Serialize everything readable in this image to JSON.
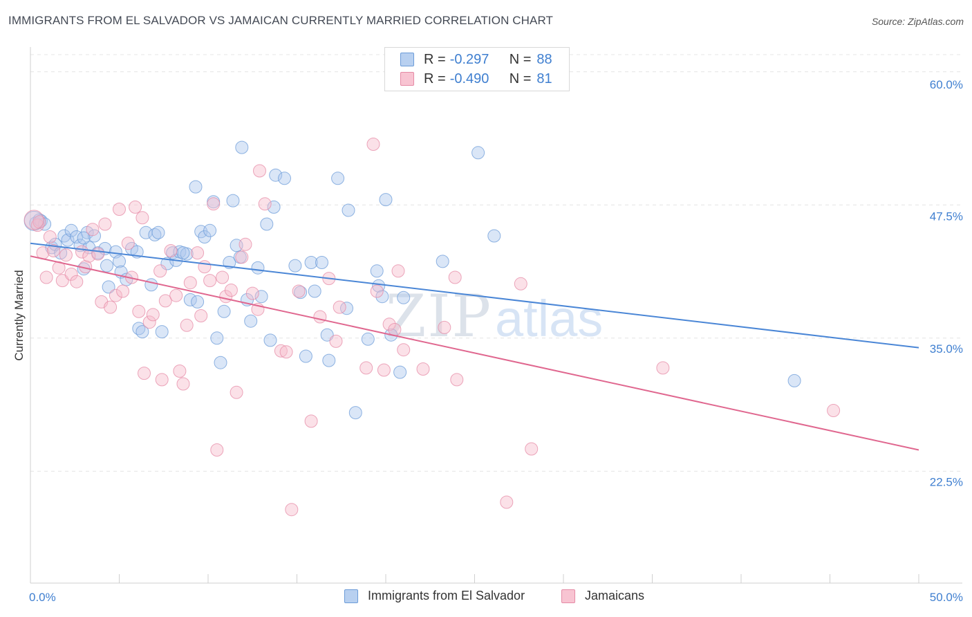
{
  "header": {
    "title": "IMMIGRANTS FROM EL SALVADOR VS JAMAICAN CURRENTLY MARRIED CORRELATION CHART",
    "source": "Source: ZipAtlas.com"
  },
  "watermark": {
    "zip": "ZIP",
    "atlas": "atlas"
  },
  "legend": {
    "r_label": "R = ",
    "n_label": "N = ",
    "rows": [
      {
        "r": "-0.297",
        "n": "88",
        "fill": "#b8d0f0",
        "stroke": "#6b9bd8"
      },
      {
        "r": "-0.490",
        "n": "81",
        "fill": "#f8c4d2",
        "stroke": "#e58aa5"
      }
    ]
  },
  "chart_data": {
    "type": "scatter",
    "title": "IMMIGRANTS FROM EL SALVADOR VS JAMAICAN CURRENTLY MARRIED CORRELATION CHART",
    "xlabel": "",
    "ylabel": "Currently Married",
    "xlim": [
      0,
      50
    ],
    "ylim": [
      12,
      62
    ],
    "x_tick_labels": [
      "0.0%",
      "50.0%"
    ],
    "y_ticks": [
      22.5,
      35.0,
      47.5,
      60.0
    ],
    "y_tick_labels": [
      "22.5%",
      "35.0%",
      "47.5%",
      "60.0%"
    ],
    "grid": true,
    "legend_position": "top-center",
    "series": [
      {
        "name": "Immigrants from El Salvador",
        "color": "#4a86d6",
        "fill": "#aec8ee",
        "trend": {
          "x": [
            0,
            50
          ],
          "y": [
            43.9,
            34.1
          ]
        },
        "points": [
          [
            0.3,
            45.8
          ],
          [
            0.5,
            46.1
          ],
          [
            0.6,
            46.0
          ],
          [
            0.8,
            45.7
          ],
          [
            1.2,
            43.5
          ],
          [
            1.4,
            43.8
          ],
          [
            1.7,
            43.0
          ],
          [
            1.9,
            44.6
          ],
          [
            2.1,
            44.2
          ],
          [
            2.3,
            45.1
          ],
          [
            2.6,
            44.5
          ],
          [
            2.8,
            43.7
          ],
          [
            3.0,
            41.5
          ],
          [
            3.2,
            44.9
          ],
          [
            3.3,
            43.5
          ],
          [
            3.6,
            44.6
          ],
          [
            3.8,
            43.0
          ],
          [
            4.2,
            43.4
          ],
          [
            4.3,
            41.8
          ],
          [
            4.4,
            39.8
          ],
          [
            4.8,
            43.1
          ],
          [
            5.0,
            42.2
          ],
          [
            5.1,
            41.2
          ],
          [
            5.4,
            40.5
          ],
          [
            5.7,
            43.4
          ],
          [
            6.0,
            43.1
          ],
          [
            6.1,
            35.9
          ],
          [
            6.3,
            35.6
          ],
          [
            6.5,
            44.9
          ],
          [
            6.8,
            40.0
          ],
          [
            7.0,
            44.7
          ],
          [
            7.2,
            44.9
          ],
          [
            7.4,
            35.6
          ],
          [
            7.7,
            42.0
          ],
          [
            8.0,
            43.0
          ],
          [
            8.2,
            42.3
          ],
          [
            8.4,
            43.1
          ],
          [
            8.8,
            42.9
          ],
          [
            9.0,
            38.6
          ],
          [
            9.3,
            49.2
          ],
          [
            9.4,
            38.4
          ],
          [
            9.6,
            45.0
          ],
          [
            9.8,
            44.5
          ],
          [
            10.1,
            45.1
          ],
          [
            10.3,
            47.8
          ],
          [
            10.5,
            35.0
          ],
          [
            10.7,
            32.7
          ],
          [
            10.9,
            37.5
          ],
          [
            11.2,
            42.1
          ],
          [
            11.4,
            47.9
          ],
          [
            11.6,
            43.7
          ],
          [
            11.8,
            42.6
          ],
          [
            11.9,
            52.9
          ],
          [
            12.2,
            38.6
          ],
          [
            12.4,
            36.6
          ],
          [
            12.8,
            41.6
          ],
          [
            13.0,
            38.9
          ],
          [
            13.3,
            45.7
          ],
          [
            13.5,
            34.8
          ],
          [
            13.7,
            47.3
          ],
          [
            13.8,
            50.3
          ],
          [
            14.3,
            50.0
          ],
          [
            14.9,
            41.8
          ],
          [
            15.2,
            39.3
          ],
          [
            15.5,
            33.3
          ],
          [
            15.8,
            42.1
          ],
          [
            16.4,
            42.1
          ],
          [
            16.7,
            35.3
          ],
          [
            16.8,
            32.9
          ],
          [
            17.3,
            50.0
          ],
          [
            17.8,
            37.8
          ],
          [
            17.9,
            47.0
          ],
          [
            18.3,
            28.0
          ],
          [
            19.0,
            34.9
          ],
          [
            19.5,
            41.3
          ],
          [
            19.6,
            39.9
          ],
          [
            19.8,
            38.9
          ],
          [
            20.3,
            35.3
          ],
          [
            20.0,
            48.0
          ],
          [
            20.8,
            31.8
          ],
          [
            21.0,
            38.8
          ],
          [
            23.2,
            42.2
          ],
          [
            25.2,
            52.4
          ],
          [
            26.1,
            44.6
          ],
          [
            43.0,
            31.0
          ],
          [
            3.0,
            44.4
          ],
          [
            8.6,
            43.0
          ],
          [
            16.0,
            39.4
          ]
        ]
      },
      {
        "name": "Jamaicans",
        "color": "#e0678f",
        "fill": "#f6bccb",
        "trend": {
          "x": [
            0,
            50
          ],
          "y": [
            42.7,
            24.5
          ]
        },
        "points": [
          [
            0.4,
            45.6
          ],
          [
            0.7,
            43.0
          ],
          [
            0.9,
            40.7
          ],
          [
            1.1,
            44.5
          ],
          [
            1.3,
            43.2
          ],
          [
            1.6,
            41.6
          ],
          [
            1.8,
            40.4
          ],
          [
            2.0,
            42.8
          ],
          [
            2.3,
            41.0
          ],
          [
            2.6,
            40.3
          ],
          [
            2.9,
            43.1
          ],
          [
            3.1,
            41.7
          ],
          [
            3.3,
            42.7
          ],
          [
            3.5,
            45.2
          ],
          [
            3.8,
            42.9
          ],
          [
            4.0,
            38.4
          ],
          [
            4.2,
            45.7
          ],
          [
            4.5,
            37.9
          ],
          [
            4.8,
            39.0
          ],
          [
            5.0,
            47.1
          ],
          [
            5.2,
            39.4
          ],
          [
            5.5,
            43.9
          ],
          [
            5.7,
            40.7
          ],
          [
            5.9,
            47.3
          ],
          [
            6.1,
            37.5
          ],
          [
            6.3,
            46.3
          ],
          [
            6.4,
            31.7
          ],
          [
            6.7,
            36.5
          ],
          [
            6.9,
            37.2
          ],
          [
            7.3,
            41.3
          ],
          [
            7.4,
            31.1
          ],
          [
            7.6,
            38.5
          ],
          [
            7.9,
            43.2
          ],
          [
            8.2,
            39.0
          ],
          [
            8.4,
            31.9
          ],
          [
            8.6,
            30.7
          ],
          [
            8.8,
            36.2
          ],
          [
            9.0,
            40.2
          ],
          [
            9.4,
            43.0
          ],
          [
            9.6,
            37.1
          ],
          [
            9.8,
            41.7
          ],
          [
            10.1,
            40.4
          ],
          [
            10.3,
            47.6
          ],
          [
            10.5,
            24.5
          ],
          [
            10.8,
            40.7
          ],
          [
            11.0,
            38.9
          ],
          [
            11.3,
            39.5
          ],
          [
            11.6,
            29.9
          ],
          [
            11.9,
            42.6
          ],
          [
            12.1,
            43.8
          ],
          [
            12.5,
            39.2
          ],
          [
            12.8,
            37.7
          ],
          [
            12.9,
            50.7
          ],
          [
            13.2,
            47.6
          ],
          [
            14.1,
            33.8
          ],
          [
            14.4,
            33.7
          ],
          [
            14.7,
            18.9
          ],
          [
            15.1,
            39.4
          ],
          [
            15.8,
            27.2
          ],
          [
            16.3,
            37.0
          ],
          [
            16.8,
            40.6
          ],
          [
            17.2,
            34.7
          ],
          [
            17.4,
            37.9
          ],
          [
            18.9,
            32.2
          ],
          [
            19.3,
            53.2
          ],
          [
            19.5,
            39.4
          ],
          [
            19.9,
            32.0
          ],
          [
            20.2,
            36.3
          ],
          [
            20.5,
            35.8
          ],
          [
            20.7,
            41.3
          ],
          [
            21.0,
            33.9
          ],
          [
            22.1,
            32.1
          ],
          [
            23.3,
            36.0
          ],
          [
            23.9,
            40.7
          ],
          [
            24.0,
            31.1
          ],
          [
            26.8,
            19.6
          ],
          [
            27.6,
            40.1
          ],
          [
            28.2,
            24.6
          ],
          [
            35.6,
            32.2
          ],
          [
            45.2,
            28.2
          ],
          [
            0.5,
            45.9
          ]
        ]
      }
    ]
  },
  "bottom_legend": [
    {
      "label": "Immigrants from El Salvador",
      "fill": "#b8d0f0",
      "stroke": "#6b9bd8"
    },
    {
      "label": "Jamaicans",
      "fill": "#f8c4d2",
      "stroke": "#e58aa5"
    }
  ]
}
